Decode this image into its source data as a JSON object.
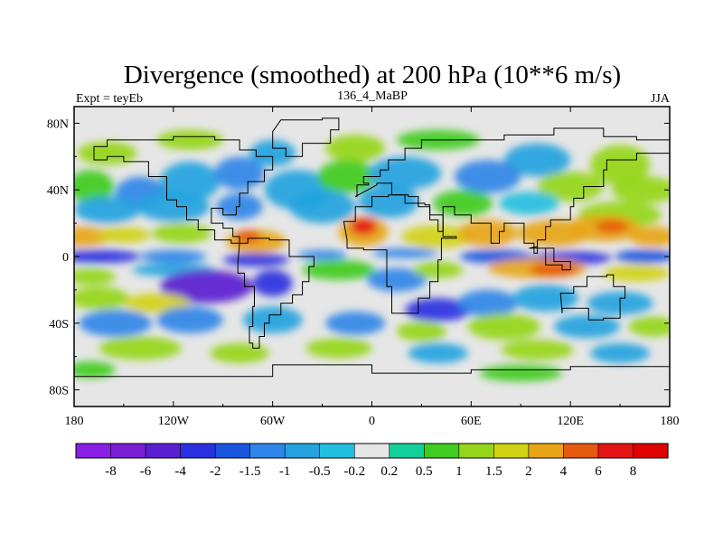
{
  "title": "Divergence (smoothed) at 200 hPa (10**6 m/s)",
  "subtitle_left": "Expt = teyEb",
  "subtitle_center": "136_4_MaBP",
  "subtitle_right": "JJA",
  "x_ticks": [
    "180",
    "120W",
    "60W",
    "0",
    "60E",
    "120E",
    "180"
  ],
  "y_ticks": [
    "80N",
    "40N",
    "0",
    "40S",
    "80S"
  ],
  "colorbar": {
    "labels": [
      "-8",
      "-6",
      "-4",
      "-2",
      "-1.5",
      "-1",
      "-0.5",
      "-0.2",
      "0.2",
      "0.5",
      "1",
      "1.5",
      "2",
      "4",
      "6",
      "8"
    ],
    "colors": [
      "#8a1fe6",
      "#7a1fd6",
      "#5a1fd0",
      "#2a30e0",
      "#1a55e0",
      "#2f86e8",
      "#24a3e0",
      "#22c0e0",
      "#e6e6e6",
      "#13d09a",
      "#40cc20",
      "#96d61a",
      "#d2d214",
      "#e8a616",
      "#e65a10",
      "#e41414",
      "#e00000"
    ]
  },
  "colors": {
    "ocean_neutral": "#e6e6e6",
    "coastline": "#000000"
  },
  "chart_data": {
    "type": "heatmap",
    "title": "Divergence (smoothed) at 200 hPa (10**6 m/s)",
    "xlabel": "",
    "ylabel": "",
    "xlim": [
      -180,
      180
    ],
    "ylim": [
      -90,
      90
    ],
    "units": "10**6 m/s",
    "levels": [
      -8,
      -6,
      -4,
      -2,
      -1.5,
      -1,
      -0.5,
      -0.2,
      0.2,
      0.5,
      1,
      1.5,
      2,
      4,
      6,
      8
    ],
    "features": [
      {
        "name": "eq-strip-convergence-west",
        "lon": -150,
        "lat": 0,
        "value": -3
      },
      {
        "name": "eq-strip-convergence-central",
        "lon": -60,
        "lat": -2,
        "value": -2.5
      },
      {
        "name": "eq-strip-convergence-east",
        "lon": 90,
        "lat": -2,
        "value": -2
      },
      {
        "name": "south-pacific-convergence",
        "lon": -90,
        "lat": -18,
        "value": -4
      },
      {
        "name": "south-indian-convergence",
        "lon": 40,
        "lat": -35,
        "value": -2.5
      },
      {
        "name": "nh-divergence-pacific",
        "lon": -165,
        "lat": 10,
        "value": 3
      },
      {
        "name": "nh-divergence-america",
        "lon": -70,
        "lat": 8,
        "value": 4
      },
      {
        "name": "nh-divergence-africa",
        "lon": -10,
        "lat": 18,
        "value": 5
      },
      {
        "name": "nh-divergence-asia",
        "lon": 60,
        "lat": 15,
        "value": 2.5
      },
      {
        "name": "nh-divergence-wpac",
        "lon": 140,
        "lat": 17,
        "value": 4
      },
      {
        "name": "sh-divergence-indian",
        "lon": 110,
        "lat": -8,
        "value": 5
      },
      {
        "name": "sh-divergence-pacific",
        "lon": -150,
        "lat": -22,
        "value": 1
      },
      {
        "name": "atlantic-divergence",
        "lon": -20,
        "lat": -5,
        "value": 1
      },
      {
        "name": "high-lat-divergence-north",
        "lon": -160,
        "lat": 55,
        "value": 1
      },
      {
        "name": "high-lat-divergence-south",
        "lon": -100,
        "lat": -60,
        "value": 1
      }
    ]
  }
}
